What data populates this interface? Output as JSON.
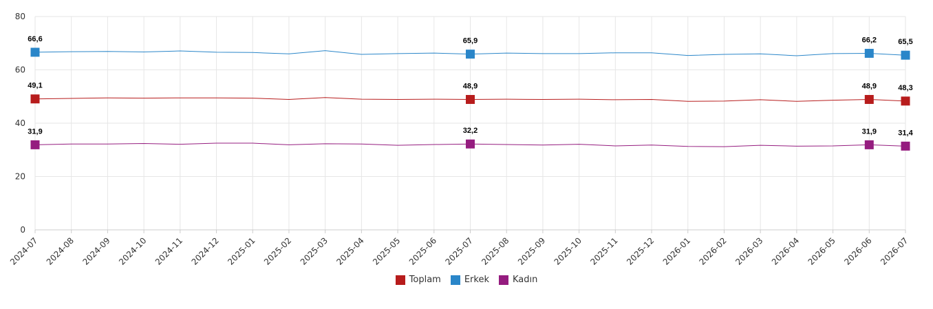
{
  "chart_data": {
    "type": "line",
    "title": "",
    "xlabel": "",
    "ylabel": "",
    "ylim": [
      0,
      80
    ],
    "yticks": [
      0,
      20,
      40,
      60,
      80
    ],
    "grid": true,
    "legend_position": "bottom-center",
    "categories": [
      "2024-07",
      "2024-08",
      "2024-09",
      "2024-10",
      "2024-11",
      "2024-12",
      "2025-01",
      "2025-02",
      "2025-03",
      "2025-04",
      "2025-05",
      "2025-06",
      "2025-07",
      "2025-08",
      "2025-09",
      "2025-10",
      "2025-11",
      "2025-12",
      "2026-01",
      "2026-02",
      "2026-03",
      "2026-04",
      "2026-05",
      "2026-06",
      "2026-07"
    ],
    "series": [
      {
        "name": "Toplam",
        "color": "#b71c1c",
        "values": [
          49.1,
          49.3,
          49.5,
          49.4,
          49.5,
          49.5,
          49.4,
          48.9,
          49.6,
          49.0,
          48.9,
          49.0,
          48.9,
          49.0,
          48.9,
          49.0,
          48.8,
          48.9,
          48.2,
          48.3,
          48.8,
          48.2,
          48.6,
          48.9,
          48.3
        ],
        "labels": {
          "0": "49,1",
          "12": "48,9",
          "23": "48,9",
          "24": "48,3"
        }
      },
      {
        "name": "Erkek",
        "color": "#2a86c9",
        "values": [
          66.6,
          66.8,
          66.9,
          66.7,
          67.1,
          66.6,
          66.5,
          66.0,
          67.2,
          65.8,
          66.1,
          66.3,
          65.9,
          66.3,
          66.1,
          66.1,
          66.4,
          66.4,
          65.4,
          65.8,
          66.0,
          65.3,
          66.1,
          66.2,
          65.5
        ],
        "labels": {
          "0": "66,6",
          "12": "65,9",
          "23": "66,2",
          "24": "65,5"
        }
      },
      {
        "name": "Kadın",
        "color": "#951c7f",
        "values": [
          31.9,
          32.2,
          32.2,
          32.4,
          32.1,
          32.5,
          32.5,
          31.9,
          32.3,
          32.2,
          31.7,
          32.0,
          32.2,
          32.0,
          31.8,
          32.1,
          31.5,
          31.8,
          31.3,
          31.2,
          31.7,
          31.4,
          31.5,
          31.9,
          31.4
        ],
        "labels": {
          "0": "31,9",
          "12": "32,2",
          "23": "31,9",
          "24": "31,4"
        }
      }
    ]
  }
}
